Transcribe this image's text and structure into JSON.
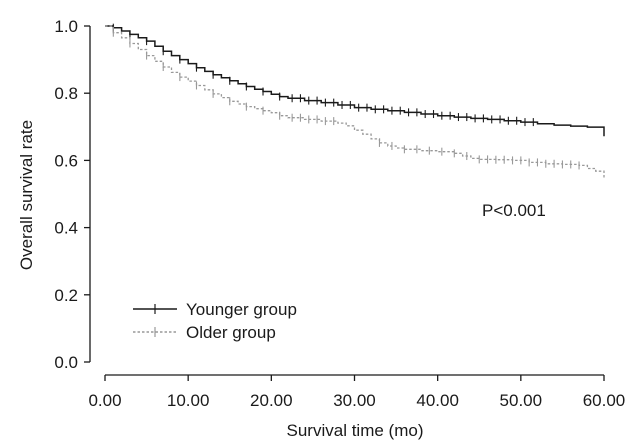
{
  "chart_data": {
    "type": "line",
    "title": "",
    "xlabel": "Survival time (mo)",
    "ylabel": "Overall survival rate",
    "xlim": [
      0,
      60
    ],
    "ylim": [
      0,
      1.0
    ],
    "x_ticks": [
      0,
      10,
      20,
      30,
      40,
      50,
      60
    ],
    "x_tick_labels": [
      "0.00",
      "10.00",
      "20.00",
      "30.00",
      "40.00",
      "50.00",
      "60.00"
    ],
    "y_ticks": [
      0.0,
      0.2,
      0.4,
      0.6,
      0.8,
      1.0
    ],
    "y_tick_labels": [
      "0.0",
      "0.2",
      "0.4",
      "0.6",
      "0.8",
      "1.0"
    ],
    "grid": false,
    "legend_position": "bottom-left",
    "annotation": "P<0.001",
    "series": [
      {
        "name": "Younger group",
        "color": "#1a1a1a",
        "dashed": false,
        "points": [
          [
            0,
            1.0
          ],
          [
            1,
            0.995
          ],
          [
            2,
            0.985
          ],
          [
            3,
            0.975
          ],
          [
            4,
            0.965
          ],
          [
            5,
            0.955
          ],
          [
            6,
            0.94
          ],
          [
            7,
            0.925
          ],
          [
            8,
            0.912
          ],
          [
            9,
            0.9
          ],
          [
            10,
            0.888
          ],
          [
            11,
            0.876
          ],
          [
            12,
            0.865
          ],
          [
            13,
            0.855
          ],
          [
            14,
            0.846
          ],
          [
            15,
            0.837
          ],
          [
            16,
            0.828
          ],
          [
            17,
            0.82
          ],
          [
            18,
            0.812
          ],
          [
            19,
            0.805
          ],
          [
            20,
            0.797
          ],
          [
            21,
            0.79
          ],
          [
            22,
            0.785
          ],
          [
            24,
            0.778
          ],
          [
            26,
            0.772
          ],
          [
            28,
            0.765
          ],
          [
            30,
            0.757
          ],
          [
            32,
            0.752
          ],
          [
            34,
            0.748
          ],
          [
            36,
            0.743
          ],
          [
            38,
            0.738
          ],
          [
            40,
            0.733
          ],
          [
            42,
            0.729
          ],
          [
            44,
            0.725
          ],
          [
            46,
            0.722
          ],
          [
            48,
            0.718
          ],
          [
            50,
            0.714
          ],
          [
            52,
            0.709
          ],
          [
            54,
            0.705
          ],
          [
            56,
            0.702
          ],
          [
            58,
            0.699
          ],
          [
            60,
            0.693
          ],
          [
            60,
            0.672
          ]
        ],
        "censored": [
          1,
          3,
          5,
          7,
          9,
          11,
          13,
          15,
          17,
          19,
          21,
          22.5,
          23.5,
          24.5,
          25.5,
          26.5,
          27.5,
          28.5,
          29.5,
          30.5,
          31.5,
          32.5,
          33.5,
          34.5,
          35.5,
          36.5,
          37.5,
          38.5,
          39.5,
          40.5,
          41.5,
          42.5,
          43.5,
          44.5,
          45.5,
          46.5,
          47.5,
          48.5,
          49.5,
          50.5,
          51.5
        ]
      },
      {
        "name": "Older group",
        "color": "#999999",
        "dashed": true,
        "points": [
          [
            0,
            1.0
          ],
          [
            1,
            0.98
          ],
          [
            2,
            0.965
          ],
          [
            3,
            0.948
          ],
          [
            4,
            0.93
          ],
          [
            5,
            0.912
          ],
          [
            6,
            0.895
          ],
          [
            7,
            0.878
          ],
          [
            8,
            0.862
          ],
          [
            9,
            0.848
          ],
          [
            10,
            0.836
          ],
          [
            11,
            0.823
          ],
          [
            12,
            0.81
          ],
          [
            13,
            0.798
          ],
          [
            14,
            0.787
          ],
          [
            15,
            0.776
          ],
          [
            16,
            0.768
          ],
          [
            17,
            0.76
          ],
          [
            18,
            0.754
          ],
          [
            19,
            0.748
          ],
          [
            20,
            0.742
          ],
          [
            21,
            0.733
          ],
          [
            22,
            0.727
          ],
          [
            24,
            0.722
          ],
          [
            26,
            0.717
          ],
          [
            28,
            0.711
          ],
          [
            29,
            0.703
          ],
          [
            30,
            0.69
          ],
          [
            31,
            0.678
          ],
          [
            32,
            0.664
          ],
          [
            33,
            0.652
          ],
          [
            34,
            0.643
          ],
          [
            35,
            0.637
          ],
          [
            36,
            0.633
          ],
          [
            38,
            0.629
          ],
          [
            40,
            0.626
          ],
          [
            42,
            0.621
          ],
          [
            43,
            0.613
          ],
          [
            44,
            0.606
          ],
          [
            45,
            0.603
          ],
          [
            47,
            0.602
          ],
          [
            49,
            0.6
          ],
          [
            51,
            0.594
          ],
          [
            53,
            0.59
          ],
          [
            55,
            0.588
          ],
          [
            57,
            0.585
          ],
          [
            58,
            0.576
          ],
          [
            59,
            0.568
          ],
          [
            60,
            0.565
          ],
          [
            60,
            0.548
          ]
        ],
        "censored": [
          1,
          3,
          5,
          7,
          9,
          11,
          13,
          15,
          17,
          19,
          21,
          22.5,
          23.5,
          24.5,
          25.5,
          26.5,
          27.5,
          33,
          34.5,
          36,
          37.5,
          39,
          40.5,
          42,
          43.5,
          45,
          46,
          47,
          48,
          49,
          50,
          51,
          52,
          53,
          54,
          55,
          56,
          57
        ]
      }
    ]
  }
}
